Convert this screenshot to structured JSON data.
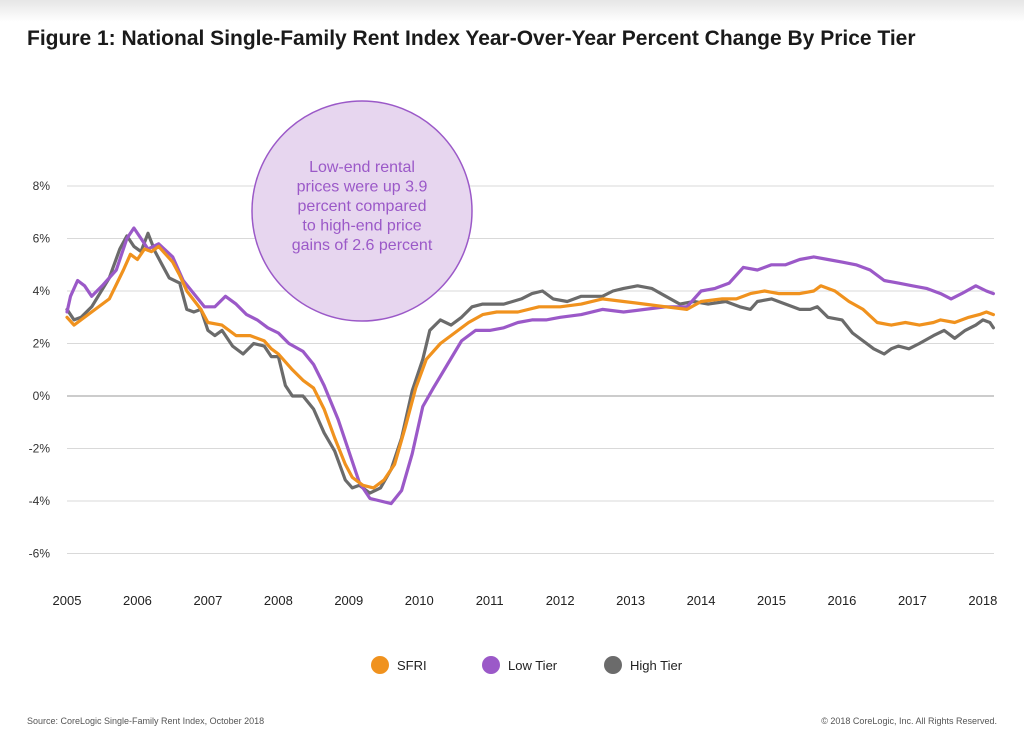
{
  "title": "Figure 1: National Single-Family Rent Index Year-Over-Year Percent Change By Price Tier",
  "footer": {
    "source": "Source: CoreLogic Single-Family Rent Index, October 2018",
    "copyright": "© 2018 CoreLogic, Inc. All Rights Reserved."
  },
  "annotation": {
    "lines": [
      "Low-end rental",
      "prices were up 3.9",
      "percent compared",
      "to high-end price",
      "gains of 2.6 percent"
    ],
    "fill": "#e7d6ef",
    "stroke": "#9b59c8",
    "text_color": "#9b59c8"
  },
  "chart_data": {
    "type": "line",
    "title": "Figure 1: National Single-Family Rent Index Year-Over-Year Percent Change By Price Tier",
    "xlabel": "",
    "ylabel": "",
    "x_ticks": [
      "2005",
      "2006",
      "2007",
      "2008",
      "2009",
      "2010",
      "2011",
      "2012",
      "2013",
      "2014",
      "2015",
      "2016",
      "2017",
      "2018"
    ],
    "y_ticks": [
      {
        "value": 8,
        "label": "8%"
      },
      {
        "value": 6,
        "label": "6%"
      },
      {
        "value": 4,
        "label": "4%"
      },
      {
        "value": 2,
        "label": "2%"
      },
      {
        "value": 0,
        "label": "0%"
      },
      {
        "value": -2,
        "label": "-2%"
      },
      {
        "value": -4,
        "label": "-4%"
      },
      {
        "value": -6,
        "label": "-6%"
      }
    ],
    "xlim": [
      2005.0,
      2018.2
    ],
    "ylim": [
      -6.6,
      8.4
    ],
    "grid": true,
    "legend_position": "bottom",
    "series": [
      {
        "name": "SFRI",
        "color": "#f0921e",
        "points": [
          [
            2005.0,
            3.0
          ],
          [
            2005.1,
            2.7
          ],
          [
            2005.3,
            3.1
          ],
          [
            2005.6,
            3.7
          ],
          [
            2005.8,
            4.8
          ],
          [
            2005.9,
            5.4
          ],
          [
            2006.0,
            5.2
          ],
          [
            2006.1,
            5.6
          ],
          [
            2006.2,
            5.5
          ],
          [
            2006.3,
            5.7
          ],
          [
            2006.5,
            5.1
          ],
          [
            2006.6,
            4.6
          ],
          [
            2006.7,
            4.0
          ],
          [
            2006.9,
            3.3
          ],
          [
            2007.0,
            2.8
          ],
          [
            2007.2,
            2.7
          ],
          [
            2007.4,
            2.3
          ],
          [
            2007.6,
            2.3
          ],
          [
            2007.8,
            2.1
          ],
          [
            2007.9,
            1.8
          ],
          [
            2008.0,
            1.6
          ],
          [
            2008.2,
            1.0
          ],
          [
            2008.35,
            0.6
          ],
          [
            2008.5,
            0.3
          ],
          [
            2008.65,
            -0.5
          ],
          [
            2008.8,
            -1.6
          ],
          [
            2008.95,
            -2.6
          ],
          [
            2009.05,
            -3.1
          ],
          [
            2009.2,
            -3.4
          ],
          [
            2009.35,
            -3.5
          ],
          [
            2009.5,
            -3.2
          ],
          [
            2009.65,
            -2.6
          ],
          [
            2009.8,
            -1.2
          ],
          [
            2009.95,
            0.3
          ],
          [
            2010.1,
            1.4
          ],
          [
            2010.3,
            2.0
          ],
          [
            2010.5,
            2.4
          ],
          [
            2010.7,
            2.8
          ],
          [
            2010.9,
            3.1
          ],
          [
            2011.1,
            3.2
          ],
          [
            2011.4,
            3.2
          ],
          [
            2011.7,
            3.4
          ],
          [
            2012.0,
            3.4
          ],
          [
            2012.3,
            3.5
          ],
          [
            2012.6,
            3.7
          ],
          [
            2012.9,
            3.6
          ],
          [
            2013.2,
            3.5
          ],
          [
            2013.5,
            3.4
          ],
          [
            2013.8,
            3.3
          ],
          [
            2014.0,
            3.6
          ],
          [
            2014.3,
            3.7
          ],
          [
            2014.5,
            3.7
          ],
          [
            2014.7,
            3.9
          ],
          [
            2014.9,
            4.0
          ],
          [
            2015.1,
            3.9
          ],
          [
            2015.4,
            3.9
          ],
          [
            2015.6,
            4.0
          ],
          [
            2015.7,
            4.2
          ],
          [
            2015.9,
            4.0
          ],
          [
            2016.1,
            3.6
          ],
          [
            2016.3,
            3.3
          ],
          [
            2016.5,
            2.8
          ],
          [
            2016.7,
            2.7
          ],
          [
            2016.9,
            2.8
          ],
          [
            2017.1,
            2.7
          ],
          [
            2017.3,
            2.8
          ],
          [
            2017.4,
            2.9
          ],
          [
            2017.6,
            2.8
          ],
          [
            2017.8,
            3.0
          ],
          [
            2017.95,
            3.1
          ],
          [
            2018.05,
            3.2
          ],
          [
            2018.15,
            3.1
          ]
        ]
      },
      {
        "name": "Low Tier",
        "color": "#9b59c8",
        "points": [
          [
            2005.0,
            3.2
          ],
          [
            2005.05,
            3.8
          ],
          [
            2005.15,
            4.4
          ],
          [
            2005.25,
            4.2
          ],
          [
            2005.35,
            3.8
          ],
          [
            2005.5,
            4.2
          ],
          [
            2005.7,
            4.8
          ],
          [
            2005.85,
            6.0
          ],
          [
            2005.95,
            6.4
          ],
          [
            2006.05,
            6.0
          ],
          [
            2006.15,
            5.6
          ],
          [
            2006.3,
            5.8
          ],
          [
            2006.5,
            5.3
          ],
          [
            2006.65,
            4.4
          ],
          [
            2006.8,
            3.9
          ],
          [
            2006.95,
            3.4
          ],
          [
            2007.1,
            3.4
          ],
          [
            2007.25,
            3.8
          ],
          [
            2007.4,
            3.5
          ],
          [
            2007.55,
            3.1
          ],
          [
            2007.7,
            2.9
          ],
          [
            2007.85,
            2.6
          ],
          [
            2008.0,
            2.4
          ],
          [
            2008.15,
            2.0
          ],
          [
            2008.35,
            1.7
          ],
          [
            2008.5,
            1.2
          ],
          [
            2008.65,
            0.4
          ],
          [
            2008.85,
            -0.9
          ],
          [
            2009.0,
            -2.1
          ],
          [
            2009.15,
            -3.3
          ],
          [
            2009.3,
            -3.9
          ],
          [
            2009.45,
            -4.0
          ],
          [
            2009.6,
            -4.1
          ],
          [
            2009.75,
            -3.6
          ],
          [
            2009.9,
            -2.2
          ],
          [
            2010.05,
            -0.4
          ],
          [
            2010.2,
            0.3
          ],
          [
            2010.4,
            1.2
          ],
          [
            2010.6,
            2.1
          ],
          [
            2010.8,
            2.5
          ],
          [
            2011.0,
            2.5
          ],
          [
            2011.2,
            2.6
          ],
          [
            2011.4,
            2.8
          ],
          [
            2011.6,
            2.9
          ],
          [
            2011.8,
            2.9
          ],
          [
            2012.0,
            3.0
          ],
          [
            2012.3,
            3.1
          ],
          [
            2012.6,
            3.3
          ],
          [
            2012.9,
            3.2
          ],
          [
            2013.2,
            3.3
          ],
          [
            2013.5,
            3.4
          ],
          [
            2013.8,
            3.4
          ],
          [
            2014.0,
            4.0
          ],
          [
            2014.2,
            4.1
          ],
          [
            2014.4,
            4.3
          ],
          [
            2014.6,
            4.9
          ],
          [
            2014.8,
            4.8
          ],
          [
            2015.0,
            5.0
          ],
          [
            2015.2,
            5.0
          ],
          [
            2015.4,
            5.2
          ],
          [
            2015.6,
            5.3
          ],
          [
            2015.8,
            5.2
          ],
          [
            2016.0,
            5.1
          ],
          [
            2016.2,
            5.0
          ],
          [
            2016.4,
            4.8
          ],
          [
            2016.6,
            4.4
          ],
          [
            2016.8,
            4.3
          ],
          [
            2017.0,
            4.2
          ],
          [
            2017.2,
            4.1
          ],
          [
            2017.4,
            3.9
          ],
          [
            2017.55,
            3.7
          ],
          [
            2017.7,
            3.9
          ],
          [
            2017.9,
            4.2
          ],
          [
            2018.05,
            4.0
          ],
          [
            2018.15,
            3.9
          ]
        ]
      },
      {
        "name": "High Tier",
        "color": "#6b6b6b",
        "points": [
          [
            2005.0,
            3.3
          ],
          [
            2005.1,
            2.9
          ],
          [
            2005.2,
            3.0
          ],
          [
            2005.35,
            3.4
          ],
          [
            2005.6,
            4.5
          ],
          [
            2005.75,
            5.6
          ],
          [
            2005.85,
            6.1
          ],
          [
            2005.95,
            5.7
          ],
          [
            2006.05,
            5.5
          ],
          [
            2006.15,
            6.2
          ],
          [
            2006.25,
            5.5
          ],
          [
            2006.35,
            5.0
          ],
          [
            2006.45,
            4.5
          ],
          [
            2006.6,
            4.3
          ],
          [
            2006.7,
            3.3
          ],
          [
            2006.8,
            3.2
          ],
          [
            2006.9,
            3.3
          ],
          [
            2007.0,
            2.5
          ],
          [
            2007.1,
            2.3
          ],
          [
            2007.2,
            2.5
          ],
          [
            2007.35,
            1.9
          ],
          [
            2007.5,
            1.6
          ],
          [
            2007.65,
            2.0
          ],
          [
            2007.8,
            1.9
          ],
          [
            2007.9,
            1.5
          ],
          [
            2008.0,
            1.5
          ],
          [
            2008.1,
            0.4
          ],
          [
            2008.2,
            0.0
          ],
          [
            2008.35,
            0.0
          ],
          [
            2008.5,
            -0.5
          ],
          [
            2008.65,
            -1.4
          ],
          [
            2008.8,
            -2.1
          ],
          [
            2008.95,
            -3.2
          ],
          [
            2009.05,
            -3.5
          ],
          [
            2009.15,
            -3.4
          ],
          [
            2009.3,
            -3.7
          ],
          [
            2009.45,
            -3.5
          ],
          [
            2009.6,
            -2.8
          ],
          [
            2009.75,
            -1.6
          ],
          [
            2009.9,
            0.2
          ],
          [
            2010.05,
            1.4
          ],
          [
            2010.15,
            2.5
          ],
          [
            2010.3,
            2.9
          ],
          [
            2010.45,
            2.7
          ],
          [
            2010.6,
            3.0
          ],
          [
            2010.75,
            3.4
          ],
          [
            2010.9,
            3.5
          ],
          [
            2011.2,
            3.5
          ],
          [
            2011.45,
            3.7
          ],
          [
            2011.6,
            3.9
          ],
          [
            2011.75,
            4.0
          ],
          [
            2011.9,
            3.7
          ],
          [
            2012.1,
            3.6
          ],
          [
            2012.3,
            3.8
          ],
          [
            2012.6,
            3.8
          ],
          [
            2012.75,
            4.0
          ],
          [
            2012.9,
            4.1
          ],
          [
            2013.1,
            4.2
          ],
          [
            2013.3,
            4.1
          ],
          [
            2013.5,
            3.8
          ],
          [
            2013.7,
            3.5
          ],
          [
            2013.9,
            3.6
          ],
          [
            2014.1,
            3.5
          ],
          [
            2014.35,
            3.6
          ],
          [
            2014.55,
            3.4
          ],
          [
            2014.7,
            3.3
          ],
          [
            2014.8,
            3.6
          ],
          [
            2015.0,
            3.7
          ],
          [
            2015.2,
            3.5
          ],
          [
            2015.4,
            3.3
          ],
          [
            2015.55,
            3.3
          ],
          [
            2015.65,
            3.4
          ],
          [
            2015.8,
            3.0
          ],
          [
            2016.0,
            2.9
          ],
          [
            2016.15,
            2.4
          ],
          [
            2016.3,
            2.1
          ],
          [
            2016.45,
            1.8
          ],
          [
            2016.6,
            1.6
          ],
          [
            2016.7,
            1.8
          ],
          [
            2016.8,
            1.9
          ],
          [
            2016.95,
            1.8
          ],
          [
            2017.1,
            2.0
          ],
          [
            2017.3,
            2.3
          ],
          [
            2017.45,
            2.5
          ],
          [
            2017.6,
            2.2
          ],
          [
            2017.75,
            2.5
          ],
          [
            2017.9,
            2.7
          ],
          [
            2018.0,
            2.9
          ],
          [
            2018.1,
            2.8
          ],
          [
            2018.15,
            2.6
          ]
        ]
      }
    ]
  }
}
